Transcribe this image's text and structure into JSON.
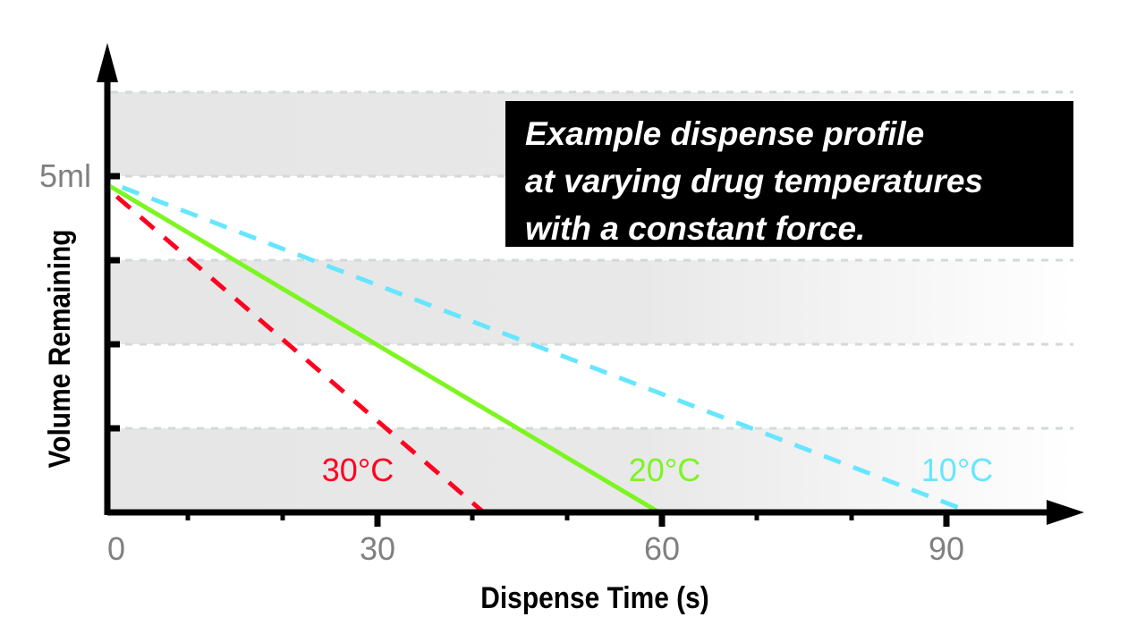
{
  "chart_data": {
    "type": "line",
    "title": "",
    "xlabel": "Dispense Time (s)",
    "ylabel": "Volume Remaining",
    "xlim": [
      0,
      105
    ],
    "ylim": [
      0,
      6.25
    ],
    "x_ticks": [
      0,
      30,
      60,
      90
    ],
    "x_tick_labels": [
      "0",
      "30",
      "60",
      "90"
    ],
    "x_minor_ticks": [
      10,
      20,
      40,
      50,
      70,
      80
    ],
    "y_ticks": [
      1.25,
      2.5,
      3.75,
      5
    ],
    "y_tick_labels": [
      {
        "value": 5,
        "label": "5ml"
      }
    ],
    "grid": "horizontal dashed, alternating gray bands",
    "series": [
      {
        "name": "30°C",
        "color": "#ff0020",
        "style": "dashed",
        "x": [
          0,
          41.2
        ],
        "y": [
          5,
          0
        ]
      },
      {
        "name": "20°C",
        "color": "#7cf521",
        "style": "solid",
        "x": [
          0,
          59.7
        ],
        "y": [
          5,
          0
        ]
      },
      {
        "name": "10°C",
        "color": "#66e6ff",
        "style": "dashed",
        "x": [
          0,
          92.6
        ],
        "y": [
          5,
          0
        ]
      }
    ],
    "annotation": [
      "Example dispense profile",
      "at varying drug temperatures",
      "with a constant force."
    ]
  }
}
